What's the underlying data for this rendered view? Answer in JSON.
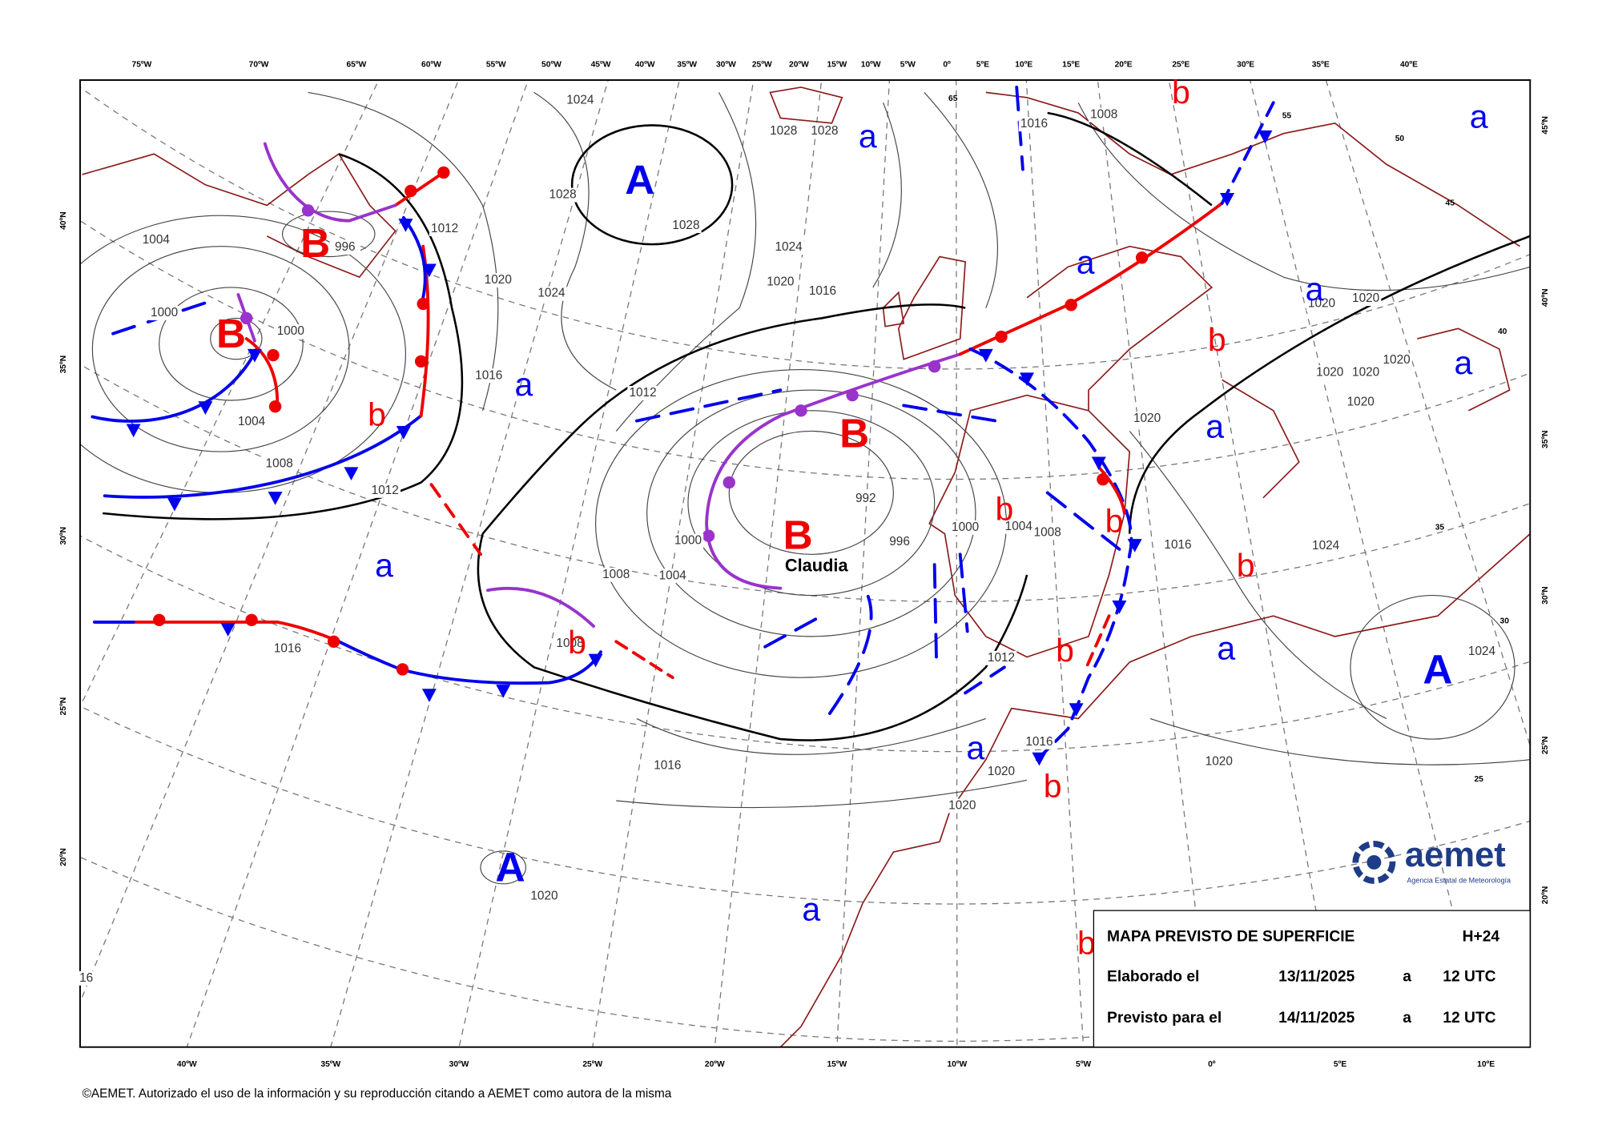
{
  "map": {
    "top_longitudes": [
      "75ºW",
      "70ºW",
      "65ºW",
      "60ºW",
      "55ºW",
      "50ºW",
      "45ºW",
      "40ºW",
      "35ºW",
      "30ºW",
      "25ºW",
      "20ºW",
      "15ºW",
      "10ºW",
      "5ºW",
      "0º",
      "5ºE",
      "10ºE",
      "15ºE",
      "20ºE",
      "25ºE",
      "30ºE",
      "35ºE",
      "40ºE"
    ],
    "bottom_longitudes": [
      "40ºW",
      "35ºW",
      "30ºW",
      "25ºW",
      "20ºW",
      "15ºW",
      "10ºW",
      "5ºW",
      "0º",
      "5ºE",
      "10ºE"
    ],
    "left_latitudes": [
      "40ºN",
      "35ºN",
      "30ºN",
      "25ºN",
      "20ºN"
    ],
    "right_latitudes": [
      "45ºN",
      "40ºN",
      "35ºN",
      "30ºN",
      "25ºN",
      "20ºN"
    ],
    "pressure_centers": [
      "A",
      "A",
      "A",
      "B",
      "B",
      "B",
      "B",
      "a",
      "a",
      "a",
      "a",
      "a",
      "a",
      "a",
      "a",
      "a",
      "a",
      "a",
      "b",
      "b",
      "b",
      "b",
      "b",
      "b",
      "b",
      "b",
      "b",
      "b"
    ],
    "storm_name": "Claudia",
    "isobar_labels": [
      "1024",
      "1028",
      "1028",
      "1028",
      "1028",
      "1004",
      "996",
      "1012",
      "1020",
      "1024",
      "1024",
      "1020",
      "1016",
      "1000",
      "1000",
      "1016",
      "1012",
      "1004",
      "1008",
      "1012",
      "992",
      "1000",
      "1004",
      "1008",
      "996",
      "1000",
      "1004",
      "1008",
      "1016",
      "1008",
      "1012",
      "1016",
      "1016",
      "1020",
      "1020",
      "1020",
      "1020",
      "1016",
      "1024",
      "1024",
      "1020",
      "1020",
      "1020",
      "1020",
      "1020",
      "1020",
      "1020",
      "1016",
      "1008",
      "16"
    ],
    "latitude_marks": [
      "65",
      "55",
      "50",
      "45",
      "40",
      "35",
      "30",
      "25"
    ]
  },
  "info_box": {
    "title": "MAPA PREVISTO DE SUPERFICIE",
    "lead": "H+24",
    "issued_label": "Elaborado el",
    "issued_date": "13/11/2025",
    "issued_at": "a",
    "issued_time": "12 UTC",
    "valid_label": "Previsto para el",
    "valid_date": "14/11/2025",
    "valid_at": "a",
    "valid_time": "12 UTC"
  },
  "logo": {
    "name": "aemet",
    "subtitle": "Agencia Estatal de Meteorología"
  },
  "footer": "©AEMET. Autorizado el uso de la información y su reproducción citando a AEMET como autora de la misma"
}
